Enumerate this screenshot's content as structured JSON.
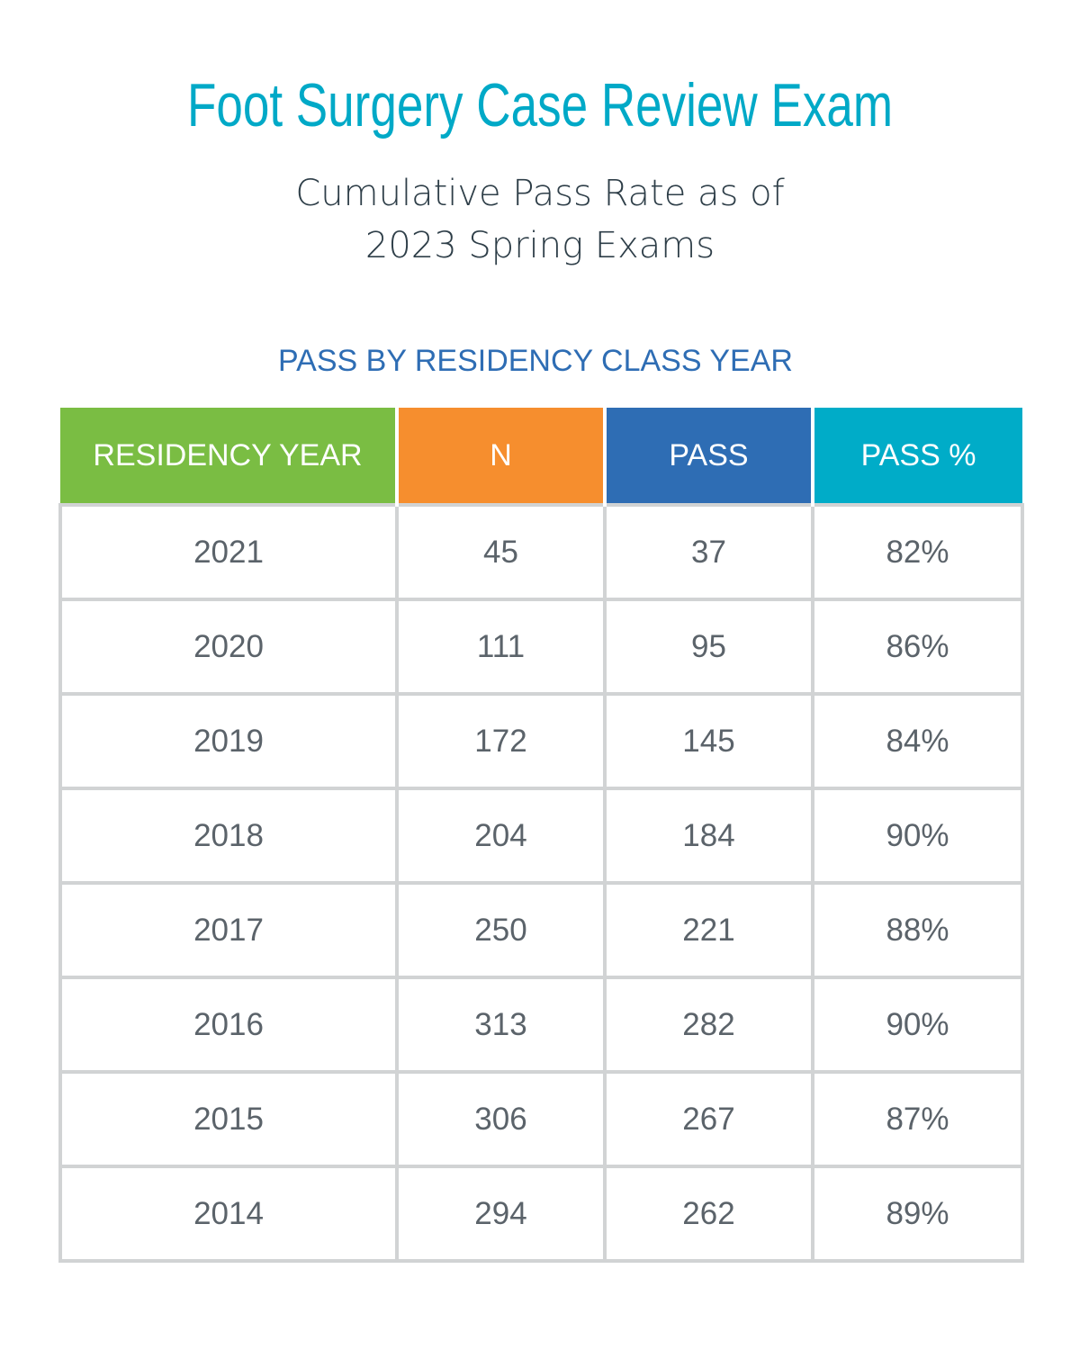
{
  "title": "Foot Surgery Case Review Exam",
  "subtitle_line1": "Cumulative Pass Rate as of",
  "subtitle_line2": "2023 Spring Exams",
  "section_heading": "PASS BY RESIDENCY CLASS YEAR",
  "colors": {
    "title": "#00a9c7",
    "col1": "#7abd43",
    "col2": "#f68e2e",
    "col3": "#2e6db4",
    "col4": "#00acc8"
  },
  "chart_data": {
    "type": "table",
    "title": "Foot Surgery Case Review Exam",
    "columns": [
      "RESIDENCY YEAR",
      "N",
      "PASS",
      "PASS %"
    ],
    "rows": [
      [
        "2021",
        "45",
        "37",
        "82%"
      ],
      [
        "2020",
        "111",
        "95",
        "86%"
      ],
      [
        "2019",
        "172",
        "145",
        "84%"
      ],
      [
        "2018",
        "204",
        "184",
        "90%"
      ],
      [
        "2017",
        "250",
        "221",
        "88%"
      ],
      [
        "2016",
        "313",
        "282",
        "90%"
      ],
      [
        "2015",
        "306",
        "267",
        "87%"
      ],
      [
        "2014",
        "294",
        "262",
        "89%"
      ]
    ]
  }
}
